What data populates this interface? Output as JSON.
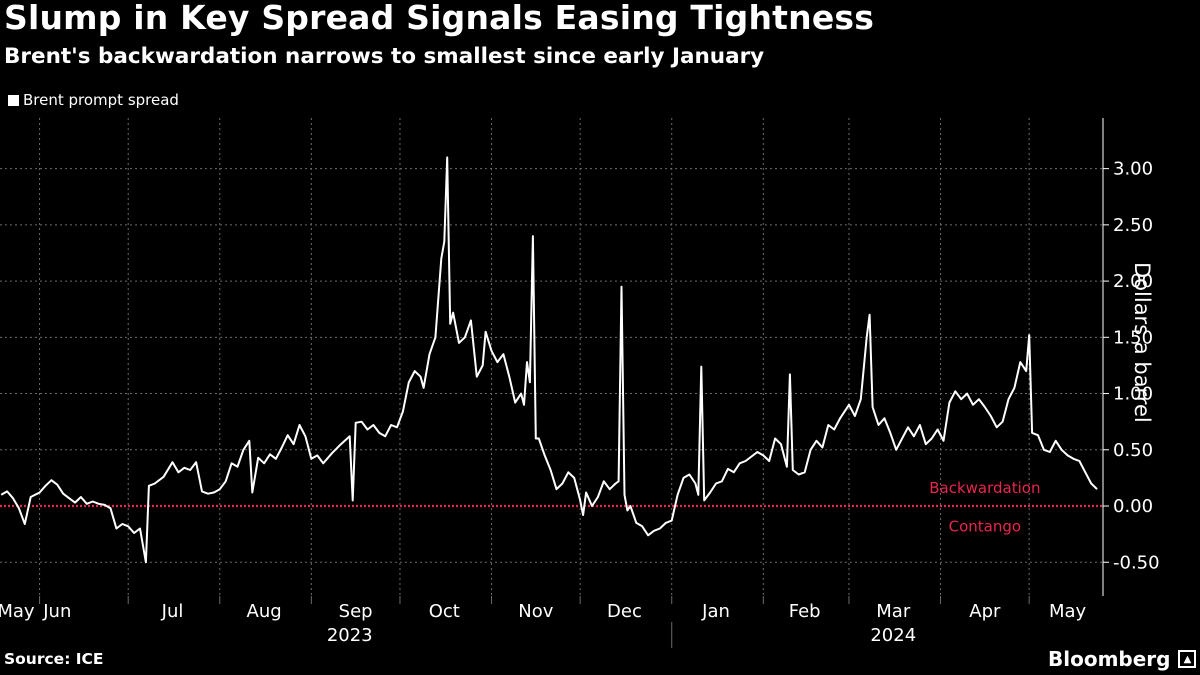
{
  "header": {
    "title": "Slump in Key Spread Signals Easing Tightness",
    "subtitle": "Brent's backwardation narrows to smallest since early January"
  },
  "footer": {
    "source": "Source: ICE",
    "brand": "Bloomberg",
    "brand_icon": "bloomberg-logo-icon"
  },
  "colors": {
    "background": "#000000",
    "line": "#ffffff",
    "zero_line": "#e8264e",
    "annotation": "#e8264e",
    "grid": "#6b6b6b"
  },
  "chart_data": {
    "type": "line",
    "ylabel": "Dollars a barrel",
    "ylim": [
      -0.8,
      3.45
    ],
    "yticks": [
      -0.5,
      0,
      0.5,
      1,
      1.5,
      2,
      2.5,
      3
    ],
    "ytick_labels": [
      "-0.50",
      "0.00",
      "0.50",
      "1.00",
      "1.50",
      "2.00",
      "2.50",
      "3.00"
    ],
    "x_range": [
      "2023-05-19",
      "2024-05-26"
    ],
    "month_ticks": [
      "2023-06-01",
      "2023-07-01",
      "2023-08-01",
      "2023-09-01",
      "2023-10-01",
      "2023-11-01",
      "2023-12-01",
      "2024-01-01",
      "2024-02-01",
      "2024-03-01",
      "2024-04-01",
      "2024-05-01"
    ],
    "month_labels": [
      {
        "label": "May",
        "date": "2023-05-24"
      },
      {
        "label": "Jun",
        "date": "2023-06-07"
      },
      {
        "label": "Jul",
        "date": "2023-07-16"
      },
      {
        "label": "Aug",
        "date": "2023-08-16"
      },
      {
        "label": "Sep",
        "date": "2023-09-16"
      },
      {
        "label": "Oct",
        "date": "2023-10-16"
      },
      {
        "label": "Nov",
        "date": "2023-11-16"
      },
      {
        "label": "Dec",
        "date": "2023-12-16"
      },
      {
        "label": "Jan",
        "date": "2024-01-16"
      },
      {
        "label": "Feb",
        "date": "2024-02-15"
      },
      {
        "label": "Mar",
        "date": "2024-03-16"
      },
      {
        "label": "Apr",
        "date": "2024-04-16"
      },
      {
        "label": "May",
        "date": "2024-05-14"
      }
    ],
    "year_labels": [
      {
        "label": "2023",
        "date": "2023-09-14"
      },
      {
        "label": "2024",
        "date": "2024-03-16"
      }
    ],
    "year_divider": "2024-01-01",
    "zero_line": 0,
    "annotations": [
      {
        "text": "Backwardation",
        "date": "2024-04-16",
        "y": 0.16
      },
      {
        "text": "Contango",
        "date": "2024-04-16",
        "y": -0.18
      }
    ],
    "series": [
      {
        "name": "Brent prompt spread",
        "points": [
          [
            "2023-05-19",
            0.1
          ],
          [
            "2023-05-21",
            0.13
          ],
          [
            "2023-05-23",
            0.07
          ],
          [
            "2023-05-25",
            -0.02
          ],
          [
            "2023-05-27",
            -0.16
          ],
          [
            "2023-05-29",
            0.08
          ],
          [
            "2023-06-01",
            0.12
          ],
          [
            "2023-06-03",
            0.18
          ],
          [
            "2023-06-05",
            0.23
          ],
          [
            "2023-06-07",
            0.19
          ],
          [
            "2023-06-09",
            0.11
          ],
          [
            "2023-06-11",
            0.07
          ],
          [
            "2023-06-13",
            0.03
          ],
          [
            "2023-06-15",
            0.08
          ],
          [
            "2023-06-17",
            0.02
          ],
          [
            "2023-06-19",
            0.04
          ],
          [
            "2023-06-21",
            0.02
          ],
          [
            "2023-06-23",
            0.01
          ],
          [
            "2023-06-25",
            -0.02
          ],
          [
            "2023-06-27",
            -0.2
          ],
          [
            "2023-06-29",
            -0.16
          ],
          [
            "2023-07-01",
            -0.18
          ],
          [
            "2023-07-03",
            -0.24
          ],
          [
            "2023-07-05",
            -0.2
          ],
          [
            "2023-07-07",
            -0.5
          ],
          [
            "2023-07-08",
            0.18
          ],
          [
            "2023-07-10",
            0.2
          ],
          [
            "2023-07-13",
            0.26
          ],
          [
            "2023-07-16",
            0.39
          ],
          [
            "2023-07-18",
            0.3
          ],
          [
            "2023-07-20",
            0.34
          ],
          [
            "2023-07-22",
            0.32
          ],
          [
            "2023-07-24",
            0.39
          ],
          [
            "2023-07-26",
            0.13
          ],
          [
            "2023-07-28",
            0.11
          ],
          [
            "2023-07-30",
            0.12
          ],
          [
            "2023-08-01",
            0.15
          ],
          [
            "2023-08-03",
            0.22
          ],
          [
            "2023-08-05",
            0.38
          ],
          [
            "2023-08-07",
            0.35
          ],
          [
            "2023-08-09",
            0.5
          ],
          [
            "2023-08-11",
            0.58
          ],
          [
            "2023-08-12",
            0.12
          ],
          [
            "2023-08-14",
            0.43
          ],
          [
            "2023-08-16",
            0.38
          ],
          [
            "2023-08-18",
            0.46
          ],
          [
            "2023-08-20",
            0.42
          ],
          [
            "2023-08-22",
            0.52
          ],
          [
            "2023-08-24",
            0.63
          ],
          [
            "2023-08-26",
            0.55
          ],
          [
            "2023-08-28",
            0.72
          ],
          [
            "2023-08-30",
            0.62
          ],
          [
            "2023-09-01",
            0.42
          ],
          [
            "2023-09-03",
            0.45
          ],
          [
            "2023-09-05",
            0.38
          ],
          [
            "2023-09-08",
            0.47
          ],
          [
            "2023-09-11",
            0.55
          ],
          [
            "2023-09-14",
            0.62
          ],
          [
            "2023-09-15",
            0.05
          ],
          [
            "2023-09-16",
            0.74
          ],
          [
            "2023-09-18",
            0.75
          ],
          [
            "2023-09-20",
            0.68
          ],
          [
            "2023-09-22",
            0.72
          ],
          [
            "2023-09-24",
            0.65
          ],
          [
            "2023-09-26",
            0.62
          ],
          [
            "2023-09-28",
            0.72
          ],
          [
            "2023-09-30",
            0.7
          ],
          [
            "2023-10-02",
            0.84
          ],
          [
            "2023-10-04",
            1.1
          ],
          [
            "2023-10-06",
            1.2
          ],
          [
            "2023-10-08",
            1.15
          ],
          [
            "2023-10-09",
            1.05
          ],
          [
            "2023-10-11",
            1.35
          ],
          [
            "2023-10-13",
            1.5
          ],
          [
            "2023-10-15",
            2.2
          ],
          [
            "2023-10-16",
            2.35
          ],
          [
            "2023-10-17",
            3.1
          ],
          [
            "2023-10-18",
            1.62
          ],
          [
            "2023-10-19",
            1.72
          ],
          [
            "2023-10-21",
            1.45
          ],
          [
            "2023-10-23",
            1.5
          ],
          [
            "2023-10-25",
            1.65
          ],
          [
            "2023-10-27",
            1.15
          ],
          [
            "2023-10-29",
            1.25
          ],
          [
            "2023-10-30",
            1.55
          ],
          [
            "2023-11-01",
            1.38
          ],
          [
            "2023-11-03",
            1.28
          ],
          [
            "2023-11-05",
            1.35
          ],
          [
            "2023-11-07",
            1.15
          ],
          [
            "2023-11-09",
            0.92
          ],
          [
            "2023-11-11",
            1.0
          ],
          [
            "2023-11-12",
            0.9
          ],
          [
            "2023-11-13",
            1.28
          ],
          [
            "2023-11-14",
            1.1
          ],
          [
            "2023-11-15",
            2.4
          ],
          [
            "2023-11-16",
            0.6
          ],
          [
            "2023-11-17",
            0.6
          ],
          [
            "2023-11-19",
            0.45
          ],
          [
            "2023-11-21",
            0.32
          ],
          [
            "2023-11-23",
            0.15
          ],
          [
            "2023-11-25",
            0.2
          ],
          [
            "2023-11-27",
            0.3
          ],
          [
            "2023-11-29",
            0.25
          ],
          [
            "2023-12-01",
            0.05
          ],
          [
            "2023-12-02",
            -0.08
          ],
          [
            "2023-12-03",
            0.12
          ],
          [
            "2023-12-05",
            0.0
          ],
          [
            "2023-12-07",
            0.08
          ],
          [
            "2023-12-09",
            0.22
          ],
          [
            "2023-12-11",
            0.15
          ],
          [
            "2023-12-13",
            0.2
          ],
          [
            "2023-12-14",
            0.22
          ],
          [
            "2023-12-15",
            1.95
          ],
          [
            "2023-12-16",
            0.1
          ],
          [
            "2023-12-17",
            -0.04
          ],
          [
            "2023-12-18",
            0.0
          ],
          [
            "2023-12-20",
            -0.15
          ],
          [
            "2023-12-22",
            -0.18
          ],
          [
            "2023-12-24",
            -0.26
          ],
          [
            "2023-12-26",
            -0.22
          ],
          [
            "2023-12-28",
            -0.2
          ],
          [
            "2023-12-30",
            -0.15
          ],
          [
            "2024-01-01",
            -0.13
          ],
          [
            "2024-01-03",
            0.1
          ],
          [
            "2024-01-05",
            0.25
          ],
          [
            "2024-01-07",
            0.28
          ],
          [
            "2024-01-09",
            0.2
          ],
          [
            "2024-01-10",
            0.1
          ],
          [
            "2024-01-11",
            1.24
          ],
          [
            "2024-01-12",
            0.05
          ],
          [
            "2024-01-14",
            0.12
          ],
          [
            "2024-01-16",
            0.2
          ],
          [
            "2024-01-18",
            0.22
          ],
          [
            "2024-01-20",
            0.33
          ],
          [
            "2024-01-22",
            0.3
          ],
          [
            "2024-01-24",
            0.38
          ],
          [
            "2024-01-26",
            0.4
          ],
          [
            "2024-01-28",
            0.44
          ],
          [
            "2024-01-30",
            0.48
          ],
          [
            "2024-02-01",
            0.45
          ],
          [
            "2024-02-03",
            0.4
          ],
          [
            "2024-02-05",
            0.6
          ],
          [
            "2024-02-07",
            0.55
          ],
          [
            "2024-02-09",
            0.35
          ],
          [
            "2024-02-10",
            1.17
          ],
          [
            "2024-02-11",
            0.32
          ],
          [
            "2024-02-13",
            0.28
          ],
          [
            "2024-02-15",
            0.3
          ],
          [
            "2024-02-17",
            0.5
          ],
          [
            "2024-02-19",
            0.58
          ],
          [
            "2024-02-21",
            0.52
          ],
          [
            "2024-02-23",
            0.72
          ],
          [
            "2024-02-25",
            0.68
          ],
          [
            "2024-02-27",
            0.78
          ],
          [
            "2024-03-01",
            0.9
          ],
          [
            "2024-03-03",
            0.8
          ],
          [
            "2024-03-05",
            0.95
          ],
          [
            "2024-03-07",
            1.5
          ],
          [
            "2024-03-08",
            1.7
          ],
          [
            "2024-03-09",
            0.88
          ],
          [
            "2024-03-11",
            0.72
          ],
          [
            "2024-03-13",
            0.78
          ],
          [
            "2024-03-15",
            0.65
          ],
          [
            "2024-03-17",
            0.5
          ],
          [
            "2024-03-19",
            0.6
          ],
          [
            "2024-03-21",
            0.7
          ],
          [
            "2024-03-23",
            0.62
          ],
          [
            "2024-03-25",
            0.72
          ],
          [
            "2024-03-27",
            0.55
          ],
          [
            "2024-03-29",
            0.6
          ],
          [
            "2024-03-31",
            0.68
          ],
          [
            "2024-04-02",
            0.58
          ],
          [
            "2024-04-04",
            0.92
          ],
          [
            "2024-04-06",
            1.02
          ],
          [
            "2024-04-08",
            0.95
          ],
          [
            "2024-04-10",
            1.0
          ],
          [
            "2024-04-12",
            0.9
          ],
          [
            "2024-04-14",
            0.95
          ],
          [
            "2024-04-16",
            0.88
          ],
          [
            "2024-04-18",
            0.8
          ],
          [
            "2024-04-20",
            0.7
          ],
          [
            "2024-04-22",
            0.75
          ],
          [
            "2024-04-24",
            0.95
          ],
          [
            "2024-04-26",
            1.05
          ],
          [
            "2024-04-28",
            1.28
          ],
          [
            "2024-04-30",
            1.2
          ],
          [
            "2024-05-01",
            1.52
          ],
          [
            "2024-05-02",
            0.65
          ],
          [
            "2024-05-04",
            0.63
          ],
          [
            "2024-05-06",
            0.5
          ],
          [
            "2024-05-08",
            0.48
          ],
          [
            "2024-05-10",
            0.58
          ],
          [
            "2024-05-12",
            0.5
          ],
          [
            "2024-05-14",
            0.45
          ],
          [
            "2024-05-16",
            0.42
          ],
          [
            "2024-05-18",
            0.4
          ],
          [
            "2024-05-20",
            0.3
          ],
          [
            "2024-05-22",
            0.2
          ],
          [
            "2024-05-24",
            0.15
          ]
        ]
      }
    ]
  }
}
